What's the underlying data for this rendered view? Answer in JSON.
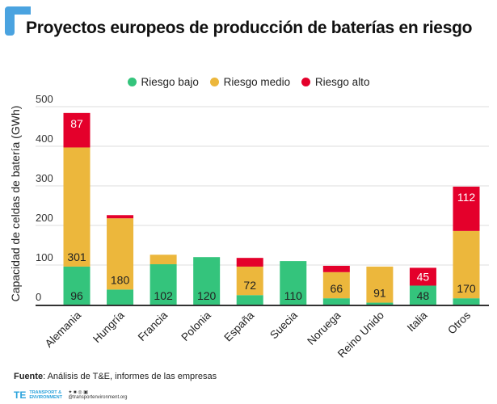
{
  "header": {
    "title": "Proyectos europeos de producción de baterías en riesgo",
    "accent_color": "#4aa3e0"
  },
  "footer": {
    "source_label": "Fuente",
    "source_text": ": Análisis de T&E, informes de las empresas",
    "logo_text": "TRANSPORT & ENVIRONMENT",
    "handle": "@transportenvironment.org"
  },
  "chart_data": {
    "type": "bar",
    "stacked": true,
    "title": "",
    "xlabel": "",
    "ylabel": "Capacidad de celdas de batería (GWh)",
    "ylim": [
      0,
      500
    ],
    "yticks": [
      "0",
      "100",
      "200",
      "300",
      "400",
      "500"
    ],
    "grid": true,
    "legend_position": "top",
    "categories": [
      "Alemania",
      "Hungría",
      "Francia",
      "Polonia",
      "España",
      "Suecia",
      "Noruega",
      "Reino Unido",
      "Italia",
      "Otros"
    ],
    "series": [
      {
        "name": "Riesgo bajo",
        "color": "#34c47c",
        "values": [
          96,
          38,
          102,
          120,
          24,
          110,
          16,
          5,
          48,
          16
        ],
        "labels": [
          "96",
          "",
          "102",
          "120",
          "",
          "110",
          "",
          "",
          "48",
          ""
        ]
      },
      {
        "name": "Riesgo medio",
        "color": "#ecb73c",
        "values": [
          301,
          180,
          24,
          0,
          72,
          0,
          66,
          91,
          0,
          170
        ],
        "labels": [
          "301",
          "180",
          "",
          "",
          "72",
          "",
          "66",
          "91",
          "",
          "170"
        ]
      },
      {
        "name": "Riesgo alto",
        "color": "#e4002b",
        "values": [
          87,
          8,
          0,
          0,
          22,
          0,
          16,
          0,
          45,
          112
        ],
        "labels": [
          "87",
          "",
          "",
          "",
          "",
          "",
          "",
          "",
          "45",
          "112"
        ]
      }
    ]
  }
}
